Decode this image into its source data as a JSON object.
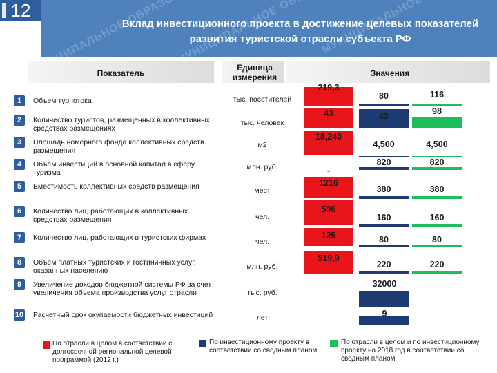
{
  "slide_number": "12",
  "title": "Вклад инвестиционного проекта в достижение целевых показателей развития туристской отрасли субъекта РФ",
  "watermark_text": "МУНИЦИПАЛЬНОЕ ОБРАЗОВАНИЕ",
  "colors": {
    "red": "#e8161b",
    "blue": "#1f3b73",
    "green": "#1dbd5a",
    "header": "#4f81bd"
  },
  "columns": {
    "indicator": "Показатель",
    "unit": "Единица измерения",
    "values": "Значения"
  },
  "rows": [
    {
      "num": "1",
      "name": "Объем турпотока",
      "unit": "тыс. посетителей",
      "red": "219,3",
      "blue": "80",
      "green": "116"
    },
    {
      "num": "2",
      "name": "Количество туристов, размещенных в коллективных средствах размещениях",
      "unit": "тыс. человек",
      "red": "43",
      "blue": "42",
      "green": "98"
    },
    {
      "num": "3",
      "name": "Площадь номерного фонда коллективных средств размещения",
      "unit": "м2",
      "red": "18,240",
      "blue": "4,500",
      "green": "4,500"
    },
    {
      "num": "4",
      "name": "Объем инвестиций в основной капитал в сферу туризма",
      "unit": "млн. руб.",
      "red": "-",
      "blue": "820",
      "green": "820"
    },
    {
      "num": "5",
      "name": "Вместимость коллективных средств размещения",
      "unit": "мест",
      "red": "1216",
      "blue": "380",
      "green": "380"
    },
    {
      "num": "6",
      "name": "Количество лиц, работающих в коллективных средствах размещения",
      "unit": "чел.",
      "red": "596",
      "blue": "160",
      "green": "160"
    },
    {
      "num": "7",
      "name": "Количество лиц, работающих в туристских фирмах",
      "unit": "чел.",
      "red": "125",
      "blue": "80",
      "green": "80"
    },
    {
      "num": "8",
      "name": "Объем платных туристских и гостиничных услуг, оказанных населению",
      "unit": "млн. руб.",
      "red": "519,9",
      "blue": "220",
      "green": "220"
    },
    {
      "num": "9",
      "name": "Увеличение доходов бюджетной системы РФ за счет увеличения объема производства услуг отрасли",
      "unit": "тыс. руб.",
      "red": "",
      "blue": "32000",
      "green": ""
    },
    {
      "num": "10",
      "name": "Расчетный срок окупаемости бюджетных инвестиций",
      "unit": "лет",
      "red": "",
      "blue": "9",
      "green": ""
    }
  ],
  "legend": [
    {
      "color": "#e8161b",
      "text": "По отрасли в целом в соответствии с долгосрочной региональной целевой программой (2012 г.)"
    },
    {
      "color": "#1f3b73",
      "text": "По инвестиционному проекту в соответствии со сводным планом"
    },
    {
      "color": "#1dbd5a",
      "text": "По отрасли в целом и по инвестиционному проекту на 2018 год в соответствии со сводным планом"
    }
  ]
}
